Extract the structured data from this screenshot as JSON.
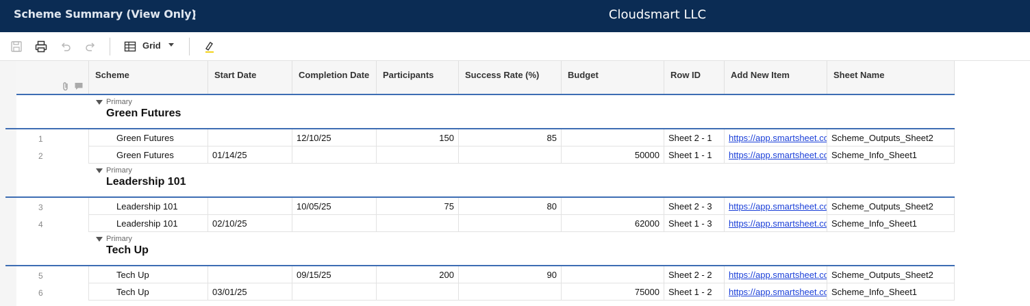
{
  "header": {
    "title": "Scheme Summary (View Only)",
    "menu_glyph": "⋮",
    "company": "Cloudsmart LLC"
  },
  "toolbar": {
    "view_label": "Grid",
    "icons": [
      "save-icon",
      "print-icon",
      "undo-icon",
      "redo-icon",
      "grid-view-icon",
      "highlight-icon"
    ]
  },
  "columns": [
    "Scheme",
    "Start Date",
    "Completion Date",
    "Participants",
    "Success Rate (%)",
    "Budget",
    "Row ID",
    "Add New Item",
    "Sheet Name"
  ],
  "groups": [
    {
      "label": "Primary",
      "name": "Green Futures",
      "rows": [
        {
          "num": "1",
          "scheme": "Green Futures",
          "start": "",
          "completion": "12/10/25",
          "participants": "150",
          "success": "85",
          "budget": "",
          "rowid": "Sheet 2 - 1",
          "link": "https://app.smartsheet.com",
          "sheet": "Scheme_Outputs_Sheet2"
        },
        {
          "num": "2",
          "scheme": "Green Futures",
          "start": "01/14/25",
          "completion": "",
          "participants": "",
          "success": "",
          "budget": "50000",
          "rowid": "Sheet 1 - 1",
          "link": "https://app.smartsheet.com",
          "sheet": "Scheme_Info_Sheet1"
        }
      ]
    },
    {
      "label": "Primary",
      "name": "Leadership 101",
      "rows": [
        {
          "num": "3",
          "scheme": "Leadership 101",
          "start": "",
          "completion": "10/05/25",
          "participants": "75",
          "success": "80",
          "budget": "",
          "rowid": "Sheet 2 - 3",
          "link": "https://app.smartsheet.com",
          "sheet": "Scheme_Outputs_Sheet2"
        },
        {
          "num": "4",
          "scheme": "Leadership 101",
          "start": "02/10/25",
          "completion": "",
          "participants": "",
          "success": "",
          "budget": "62000",
          "rowid": "Sheet 1 - 3",
          "link": "https://app.smartsheet.com",
          "sheet": "Scheme_Info_Sheet1"
        }
      ]
    },
    {
      "label": "Primary",
      "name": "Tech Up",
      "rows": [
        {
          "num": "5",
          "scheme": "Tech Up",
          "start": "",
          "completion": "09/15/25",
          "participants": "200",
          "success": "90",
          "budget": "",
          "rowid": "Sheet 2 - 2",
          "link": "https://app.smartsheet.com",
          "sheet": "Scheme_Outputs_Sheet2"
        },
        {
          "num": "6",
          "scheme": "Tech Up",
          "start": "03/01/25",
          "completion": "",
          "participants": "",
          "success": "",
          "budget": "75000",
          "rowid": "Sheet 1 - 2",
          "link": "https://app.smartsheet.com",
          "sheet": "Scheme_Info_Sheet1"
        }
      ]
    }
  ]
}
